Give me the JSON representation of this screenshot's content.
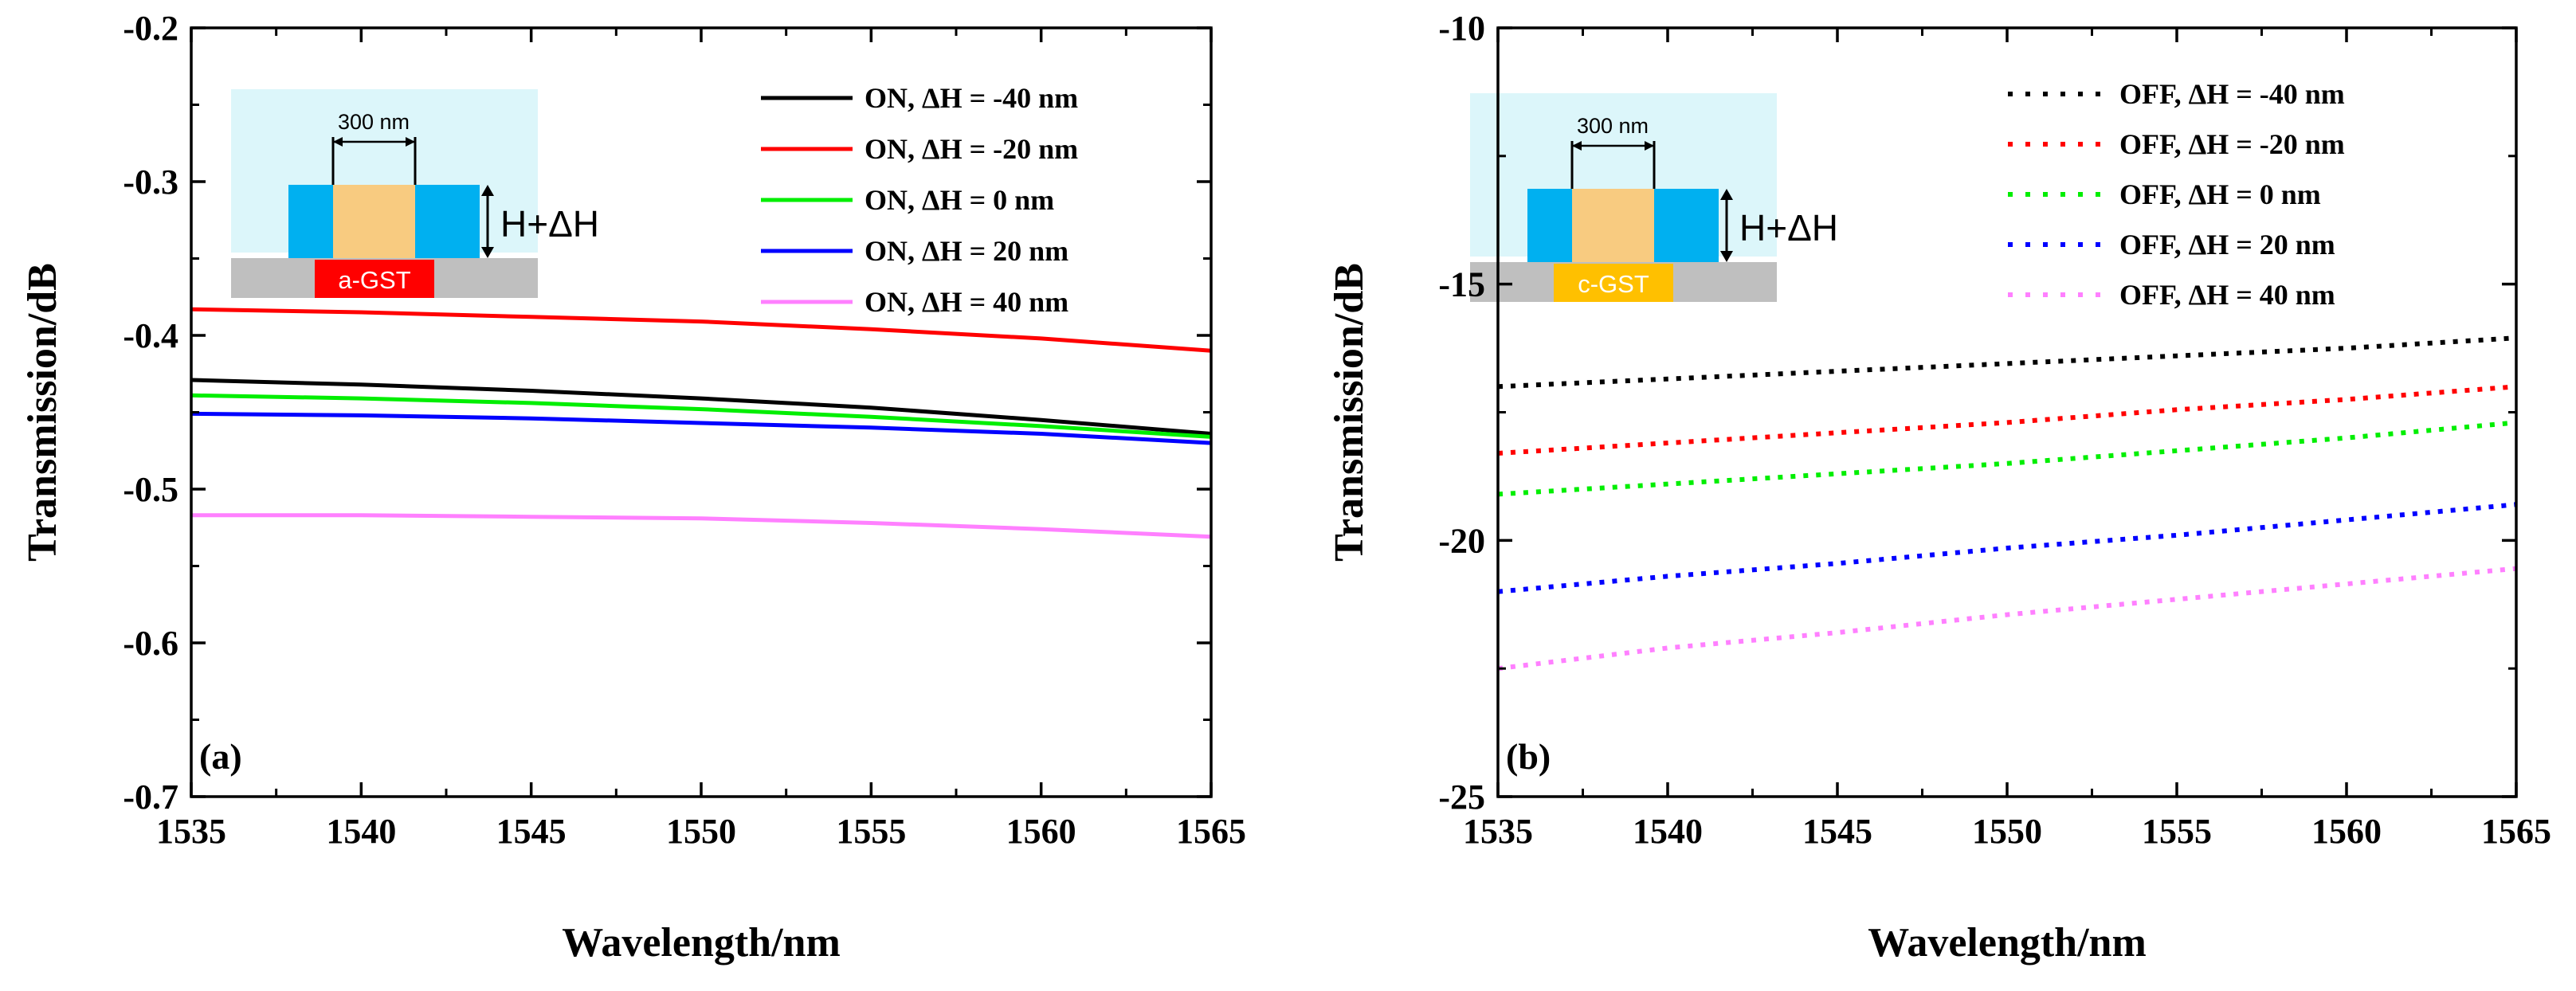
{
  "chart_data": [
    {
      "type": "line",
      "panel_label": "(a)",
      "xlabel": "Wavelength/nm",
      "ylabel": "Transmission/dB",
      "xlim": [
        1535,
        1565
      ],
      "ylim": [
        -0.7,
        -0.2
      ],
      "x_ticks": [
        1535,
        1540,
        1545,
        1550,
        1555,
        1560,
        1565
      ],
      "y_ticks": [
        -0.7,
        -0.6,
        -0.5,
        -0.4,
        -0.3,
        -0.2
      ],
      "y_tick_labels": [
        "-0.7",
        "-0.6",
        "-0.5",
        "-0.4",
        "-0.3",
        "-0.2"
      ],
      "line_style": "solid",
      "x": [
        1535,
        1540,
        1545,
        1550,
        1555,
        1560,
        1565
      ],
      "series": [
        {
          "name": "ON, ΔH = -40 nm",
          "color": "#000000",
          "values": [
            -0.429,
            -0.432,
            -0.436,
            -0.441,
            -0.447,
            -0.455,
            -0.464
          ]
        },
        {
          "name": "ON, ΔH = -20 nm",
          "color": "#ff0000",
          "values": [
            -0.383,
            -0.385,
            -0.388,
            -0.391,
            -0.396,
            -0.402,
            -0.41
          ]
        },
        {
          "name": "ON, ΔH = 0 nm",
          "color": "#00ee00",
          "values": [
            -0.439,
            -0.441,
            -0.444,
            -0.448,
            -0.453,
            -0.459,
            -0.466
          ]
        },
        {
          "name": "ON, ΔH = 20 nm",
          "color": "#0000ff",
          "values": [
            -0.451,
            -0.452,
            -0.454,
            -0.457,
            -0.46,
            -0.464,
            -0.47
          ]
        },
        {
          "name": "ON, ΔH = 40 nm",
          "color": "#ff80ff",
          "values": [
            -0.517,
            -0.517,
            -0.518,
            -0.519,
            -0.522,
            -0.526,
            -0.531
          ]
        }
      ],
      "inset": {
        "width_label": "300 nm",
        "height_label": "H+ΔH",
        "material_label": "a-GST",
        "material_color": "#ff0000"
      }
    },
    {
      "type": "line",
      "panel_label": "(b)",
      "xlabel": "Wavelength/nm",
      "ylabel": "Transmission/dB",
      "xlim": [
        1535,
        1565
      ],
      "ylim": [
        -25,
        -10
      ],
      "x_ticks": [
        1535,
        1540,
        1545,
        1550,
        1555,
        1560,
        1565
      ],
      "y_ticks": [
        -25,
        -20,
        -15,
        -10
      ],
      "y_tick_labels": [
        "-25",
        "-20",
        "-15",
        "-10"
      ],
      "line_style": "dotted",
      "x": [
        1535,
        1540,
        1545,
        1550,
        1555,
        1560,
        1565
      ],
      "series": [
        {
          "name": "OFF, ΔH = -40 nm",
          "color": "#000000",
          "values": [
            -17.0,
            -16.85,
            -16.7,
            -16.55,
            -16.4,
            -16.25,
            -16.05
          ]
        },
        {
          "name": "OFF, ΔH = -20 nm",
          "color": "#ff0000",
          "values": [
            -18.3,
            -18.1,
            -17.9,
            -17.7,
            -17.45,
            -17.25,
            -17.0
          ]
        },
        {
          "name": "OFF, ΔH = 0 nm",
          "color": "#00ee00",
          "values": [
            -19.1,
            -18.9,
            -18.7,
            -18.5,
            -18.25,
            -18.0,
            -17.7
          ]
        },
        {
          "name": "OFF, ΔH = 20 nm",
          "color": "#0000ff",
          "values": [
            -21.0,
            -20.7,
            -20.45,
            -20.15,
            -19.9,
            -19.6,
            -19.3
          ]
        },
        {
          "name": "OFF, ΔH = 40 nm",
          "color": "#ff80ff",
          "values": [
            -22.5,
            -22.1,
            -21.8,
            -21.45,
            -21.15,
            -20.85,
            -20.55
          ]
        }
      ],
      "inset": {
        "width_label": "300 nm",
        "height_label": "H+ΔH",
        "material_label": "c-GST",
        "material_color": "#ffc000"
      }
    }
  ]
}
